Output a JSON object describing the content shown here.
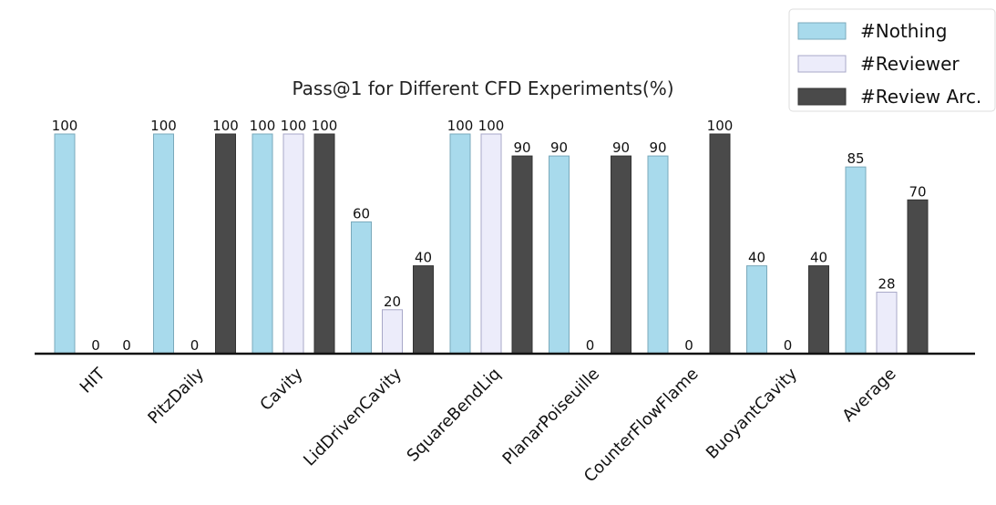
{
  "chart_data": {
    "type": "bar",
    "title": "Pass@1 for Different CFD Experiments(%)",
    "xlabel": "",
    "ylabel": "",
    "ylim": [
      0,
      100
    ],
    "grid": false,
    "legend_position": "top-right",
    "categories": [
      "HIT",
      "PitzDaily",
      "Cavity",
      "LidDrivenCavity",
      "SquareBendLiq",
      "PlanarPoiseuille",
      "CounterFlowFlame",
      "BuoyantCavity",
      "Average"
    ],
    "series": [
      {
        "name": "#Nothing",
        "color": "#a8daec",
        "values": [
          100,
          100,
          100,
          60,
          100,
          90,
          90,
          40,
          85
        ]
      },
      {
        "name": "#Reviewer",
        "color": "#ececfa",
        "values": [
          0,
          0,
          100,
          20,
          100,
          0,
          0,
          0,
          28
        ]
      },
      {
        "name": "#Review Arc.",
        "color": "#4a4a4a",
        "values": [
          0,
          100,
          100,
          40,
          90,
          90,
          100,
          40,
          70
        ]
      }
    ]
  }
}
